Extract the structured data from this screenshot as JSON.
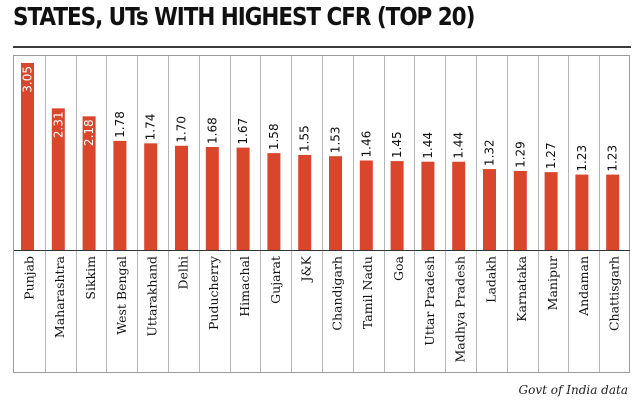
{
  "title": "STATES, UTs WITH HIGHEST CFR (TOP 20)",
  "source": "Govt of India data",
  "colors": {
    "bar": "#d9462c",
    "divider": "#b5b5b5",
    "baseline": "#333333"
  },
  "chart_data": {
    "type": "bar",
    "title": "STATES, UTs WITH HIGHEST CFR (TOP 20)",
    "xlabel": "",
    "ylabel": "",
    "categories": [
      "Punjab",
      "Maharashtra",
      "Sikkim",
      "West Bengal",
      "Uttarakhand",
      "Delhi",
      "Puducherry",
      "Himachal",
      "Gujarat",
      "J&K",
      "Chandigarh",
      "Tamil Nadu",
      "Goa",
      "Uttar Pradesh",
      "Madhya Pradesh",
      "Ladakh",
      "Karnataka",
      "Manipur",
      "Andaman",
      "Chattisgarh"
    ],
    "values": [
      3.05,
      2.31,
      2.18,
      1.78,
      1.74,
      1.7,
      1.68,
      1.67,
      1.58,
      1.55,
      1.53,
      1.46,
      1.45,
      1.44,
      1.44,
      1.32,
      1.29,
      1.27,
      1.23,
      1.23
    ],
    "labels": [
      "3.05",
      "2.31",
      "2.18",
      "1.78",
      "1.74",
      "1.70",
      "1.68",
      "1.67",
      "1.58",
      "1.55",
      "1.53",
      "1.46",
      "1.45",
      "1.44",
      "1.44",
      "1.32",
      "1.29",
      "1.27",
      "1.23",
      "1.23"
    ],
    "ylim": [
      0,
      3.05
    ],
    "grid": false,
    "legend": "none"
  }
}
